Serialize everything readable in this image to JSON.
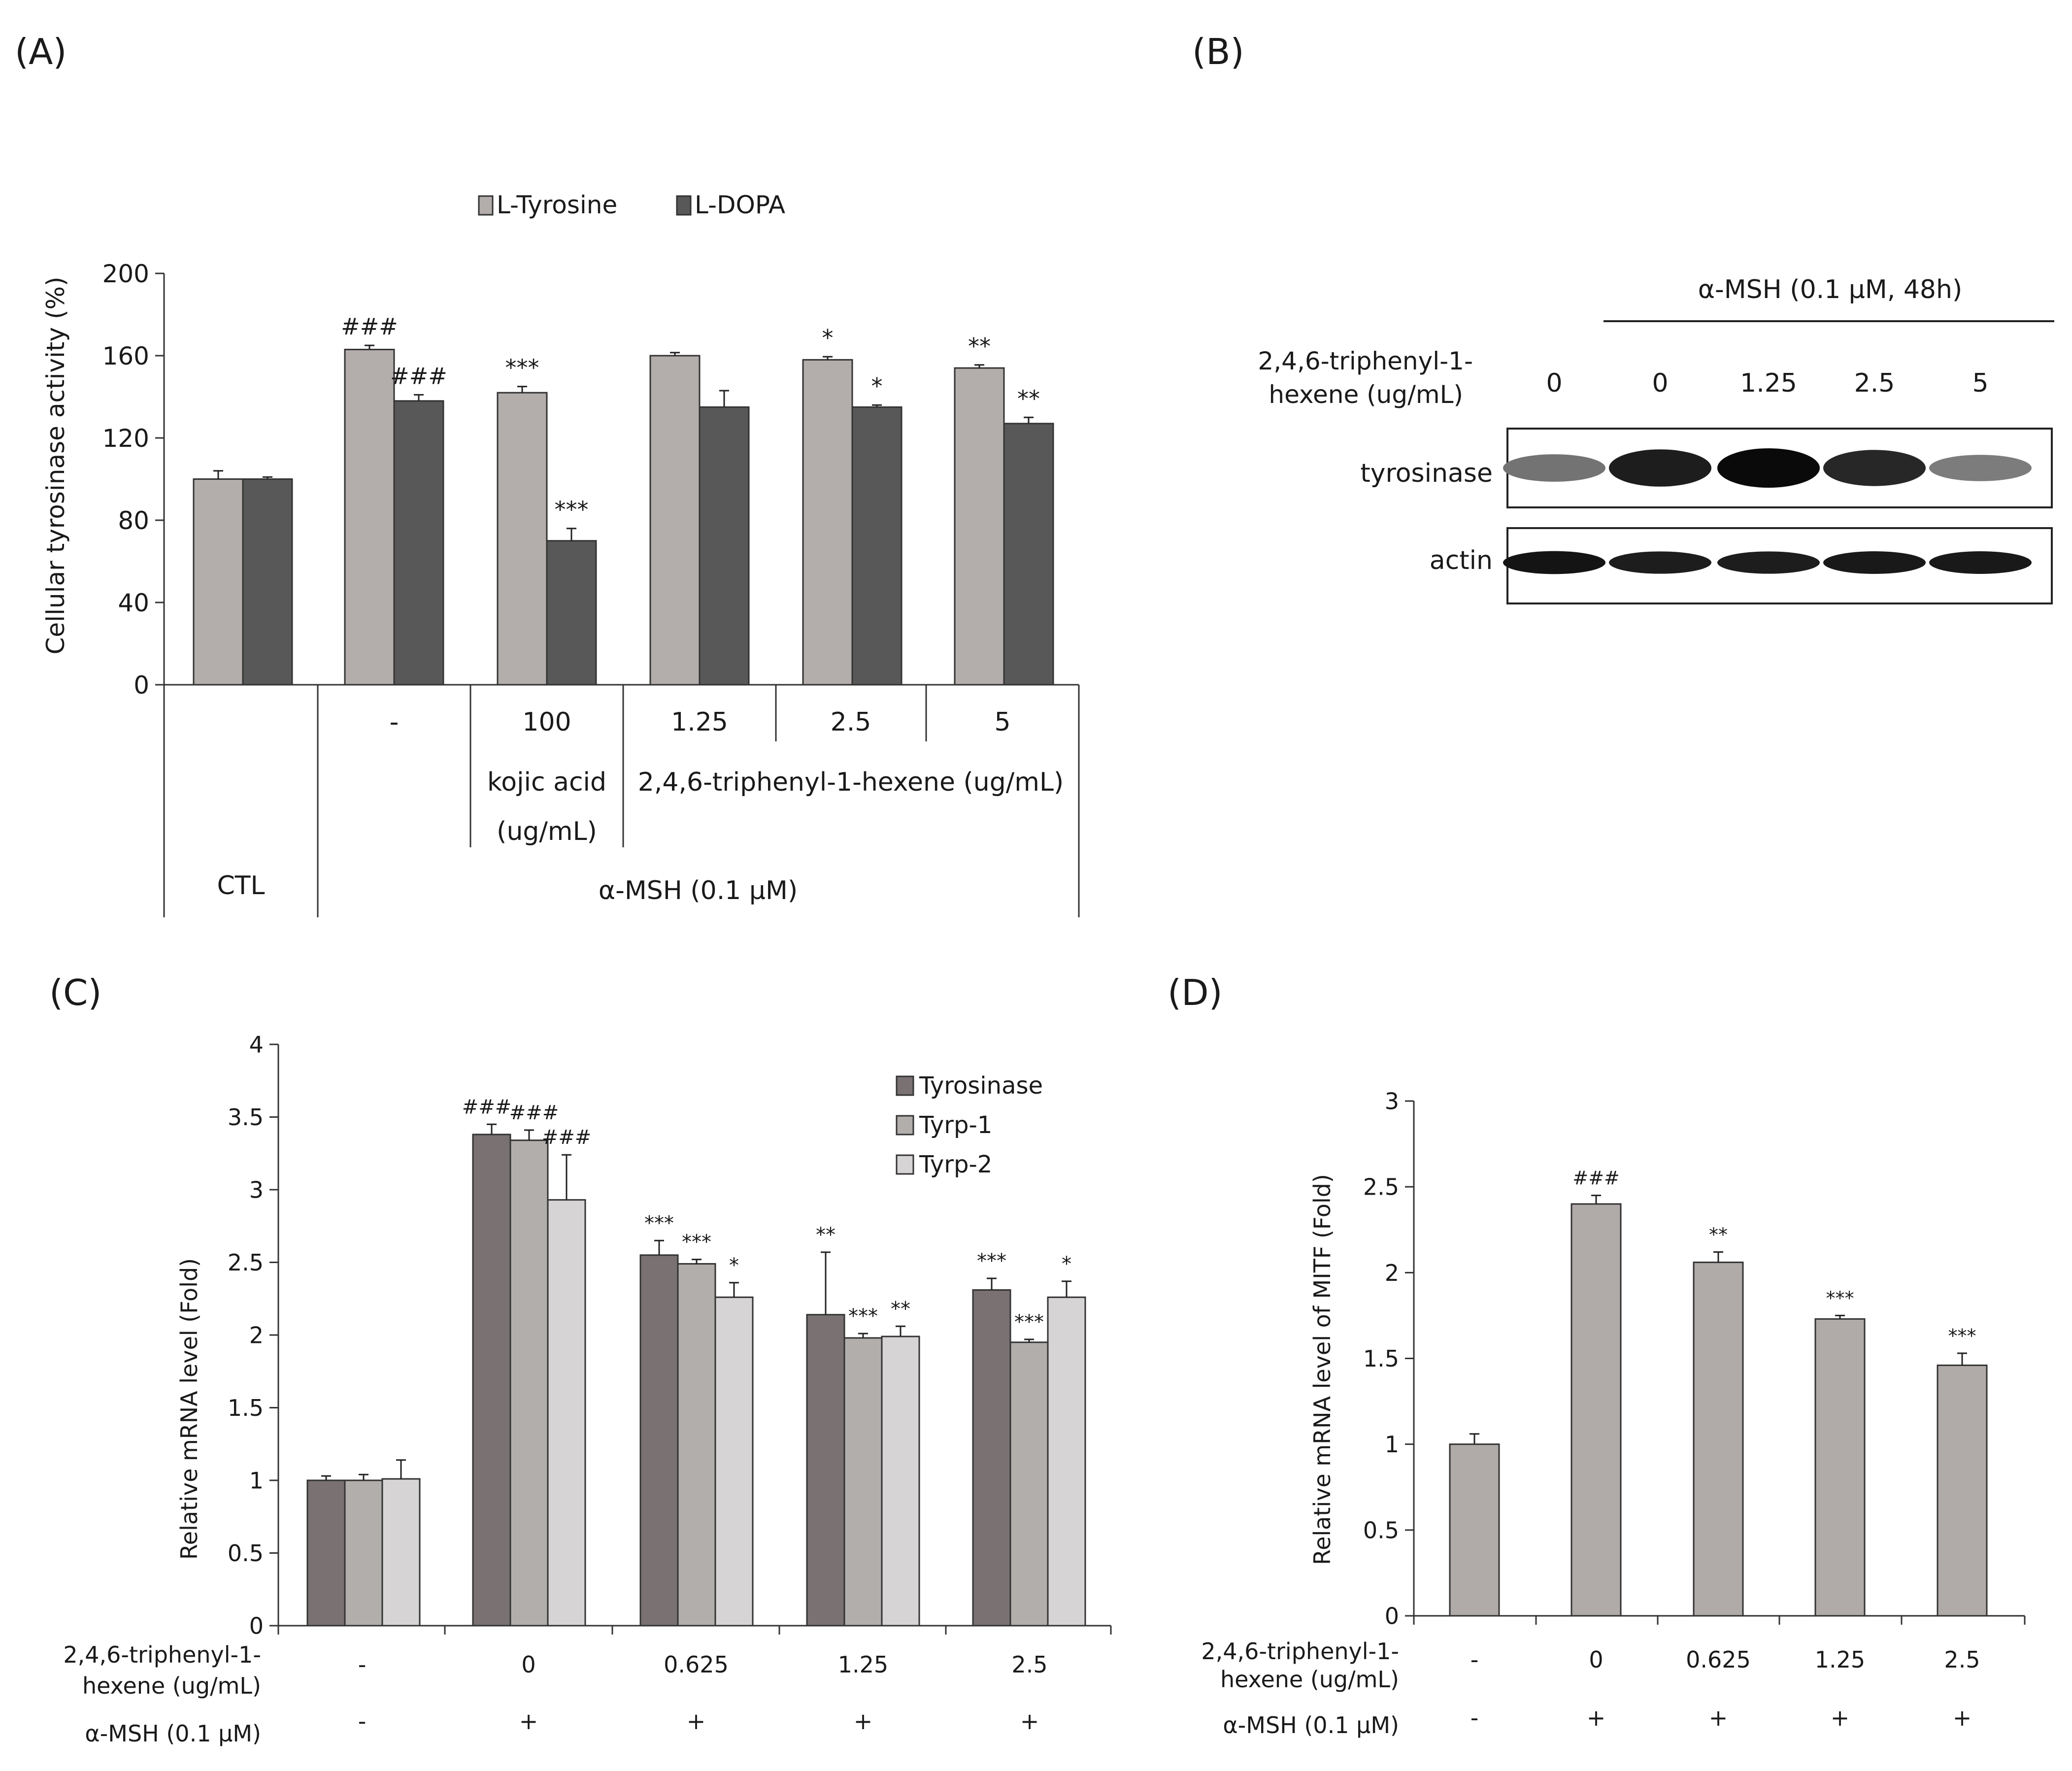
{
  "colors": {
    "light_bar": "#b3adab",
    "dark_bar": "#585858",
    "c_tyr": "#797172",
    "c_tyrp1": "#b2aeac",
    "c_tyrp2": "#d6d4d5",
    "miti": "#b0aaa8"
  },
  "panel_labels": {
    "a": "(A)",
    "b": "(B)",
    "c": "(C)",
    "d": "(D)"
  },
  "chart_data": [
    {
      "id": "A",
      "type": "bar",
      "ylabel": "Cellular tyrosinase activity (%)",
      "ylim": [
        0,
        200
      ],
      "yticks": [
        "0",
        "40",
        "80",
        "120",
        "160",
        "200"
      ],
      "categories": [
        "CTL",
        "-",
        "100",
        "1.25",
        "2.5",
        "5"
      ],
      "legend": [
        "L-Tyrosine",
        "L-DOPA"
      ],
      "series": [
        {
          "name": "L-Tyrosine",
          "values": [
            100,
            163,
            142,
            160,
            158,
            154
          ],
          "errors": [
            4,
            2,
            3,
            1.5,
            1.5,
            1.5
          ],
          "marks": [
            "",
            "###",
            "***",
            "",
            "*",
            "**"
          ]
        },
        {
          "name": "L-DOPA",
          "values": [
            100,
            138,
            70,
            135,
            135,
            127
          ],
          "errors": [
            1,
            3,
            6,
            8,
            1,
            3
          ],
          "marks": [
            "",
            "###",
            "***",
            "",
            "*",
            "**"
          ]
        }
      ],
      "table": {
        "ctl": "CTL",
        "kojic_line1": "kojic acid",
        "kojic_line2": "(ug/mL)",
        "compound": "2,4,6-triphenyl-1-hexene (ug/mL)",
        "msh": "α-MSH (0.1 μM)"
      }
    },
    {
      "id": "C",
      "type": "bar",
      "ylabel": "Relative mRNA level (Fold)",
      "ylim": [
        0,
        4
      ],
      "yticks": [
        "0",
        "0.5",
        "1",
        "1.5",
        "2",
        "2.5",
        "3",
        "3.5",
        "4"
      ],
      "categories": [
        "-",
        "0",
        "0.625",
        "1.25",
        "2.5"
      ],
      "msh": [
        "-",
        "+",
        "+",
        "+",
        "+"
      ],
      "row1_label_line1": "2,4,6-triphenyl-1-",
      "row1_label_line2": "hexene (ug/mL)",
      "row2_label": "α-MSH (0.1 μM)",
      "legend": [
        "Tyrosinase",
        "Tyrp-1",
        "Tyrp-2"
      ],
      "series": [
        {
          "name": "Tyrosinase",
          "values": [
            1.0,
            3.38,
            2.55,
            2.14,
            2.31
          ],
          "errors": [
            0.03,
            0.07,
            0.1,
            0.43,
            0.08
          ],
          "marks": [
            "",
            "###",
            "***",
            "**",
            "***"
          ]
        },
        {
          "name": "Tyrp-1",
          "values": [
            1.0,
            3.34,
            2.49,
            1.98,
            1.95
          ],
          "errors": [
            0.04,
            0.07,
            0.03,
            0.03,
            0.02
          ],
          "marks": [
            "",
            "###",
            "***",
            "***",
            "***"
          ]
        },
        {
          "name": "Tyrp-2",
          "values": [
            1.01,
            2.93,
            2.26,
            1.99,
            2.26
          ],
          "errors": [
            0.13,
            0.31,
            0.1,
            0.07,
            0.11
          ],
          "marks": [
            "",
            "###",
            "*",
            "**",
            "*"
          ]
        }
      ]
    },
    {
      "id": "D",
      "type": "bar",
      "ylabel": "Relative mRNA level of MITF (Fold)",
      "ylim": [
        0,
        3
      ],
      "yticks": [
        "0",
        "0.5",
        "1",
        "1.5",
        "2",
        "2.5",
        "3"
      ],
      "categories": [
        "-",
        "0",
        "0.625",
        "1.25",
        "2.5"
      ],
      "msh": [
        "-",
        "+",
        "+",
        "+",
        "+"
      ],
      "row1_label_line1": "2,4,6-triphenyl-1-",
      "row1_label_line2": "hexene (ug/mL)",
      "row2_label": "α-MSH (0.1 μM)",
      "series": [
        {
          "name": "MITF",
          "values": [
            1.0,
            2.4,
            2.06,
            1.73,
            1.46
          ],
          "errors": [
            0.06,
            0.05,
            0.06,
            0.02,
            0.07
          ],
          "marks": [
            "",
            "###",
            "**",
            "***",
            "***"
          ]
        }
      ]
    }
  ],
  "western": {
    "header": "α-MSH (0.1 μM, 48h)",
    "dose_label_line1": "2,4,6-triphenyl-1-",
    "dose_label_line2": "hexene (ug/mL)",
    "doses": [
      "0",
      "0",
      "1.25",
      "2.5",
      "5"
    ],
    "bands": [
      {
        "label": "tyrosinase",
        "intensity": [
          0.45,
          0.9,
          1.0,
          0.85,
          0.4
        ]
      },
      {
        "label": "actin",
        "intensity": [
          0.95,
          0.9,
          0.9,
          0.92,
          0.92
        ]
      }
    ]
  }
}
